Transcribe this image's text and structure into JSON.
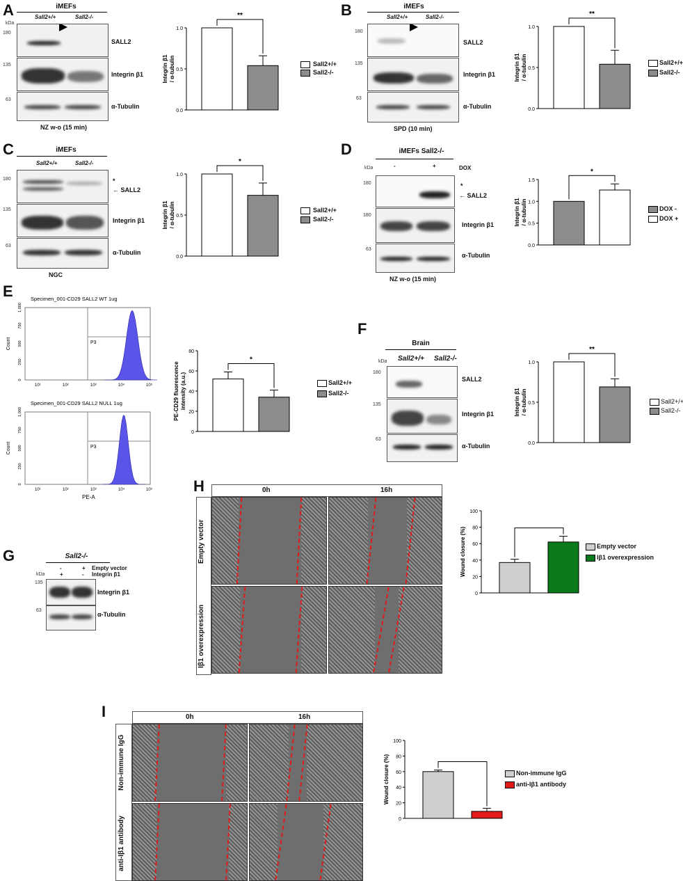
{
  "panels": {
    "A": {
      "letter": "A",
      "header": "iMEFs",
      "lanes": [
        "Sall2+/+",
        "Sall2-/-"
      ],
      "kda": [
        "kDa",
        "180",
        "135",
        "63"
      ],
      "proteins": [
        "SALL2",
        "Integrin β1",
        "α-Tubulin"
      ],
      "condition": "NZ w-o (15 min)",
      "stars": "**",
      "ylabel": "Integrin β1 / α-tubulin",
      "yticks": [
        "1.0",
        "0.5",
        "0.0"
      ],
      "legend": [
        "Sall2+/+",
        "Sall2-/-"
      ]
    },
    "B": {
      "letter": "B",
      "header": "iMEFs",
      "lanes": [
        "Sall2+/+",
        "Sall2-/-"
      ],
      "kda": [
        "kDa",
        "180",
        "135",
        "63"
      ],
      "proteins": [
        "SALL2",
        "Integrin β1",
        "α-Tubulin"
      ],
      "condition": "SPD (10 min)",
      "stars": "**",
      "ylabel": "Integrin β1 / α-tubulin",
      "yticks": [
        "1.0",
        "0.5",
        "0.0"
      ],
      "legend": [
        "Sall2+/+",
        "Sall2-/-"
      ]
    },
    "C": {
      "letter": "C",
      "header": "iMEFs",
      "lanes": [
        "Sall2+/+",
        "Sall2-/-"
      ],
      "kda": [
        "kDa",
        "180",
        "135",
        "63"
      ],
      "proteins": [
        "SALL2",
        "Integrin β1",
        "α-Tubulin"
      ],
      "asterisk": "*",
      "condition": "NGC",
      "stars": "*",
      "ylabel": "Integrin β1 / α-tubulin",
      "yticks": [
        "1.0",
        "0.5",
        "0.0"
      ],
      "legend": [
        "Sall2+/+",
        "Sall2-/-"
      ]
    },
    "D": {
      "letter": "D",
      "header": "iMEFs Sall2-/-",
      "lanes": [
        "-",
        "+"
      ],
      "dox": "DOX",
      "kda": [
        "kDa",
        "180",
        "180",
        "63"
      ],
      "proteins": [
        "SALL2",
        "Integrin β1",
        "α-Tubulin"
      ],
      "asterisk": "*",
      "condition": "NZ w-o (15 min)",
      "stars": "*",
      "ylabel": "Integrin β1 / α-tubulin",
      "yticks": [
        "1.5",
        "1.0",
        "0.5",
        "0.0"
      ],
      "legend": [
        "DOX -",
        "DOX +"
      ]
    },
    "E": {
      "letter": "E",
      "hist1": "Specimen_001-CD29 SALL2 WT 1ug",
      "hist2": "Specimen_001-CD29 SALL2 NULL 1ug",
      "gate": "P3",
      "count": "Count",
      "xaxis": "PE-A",
      "stars": "*",
      "ylabel": "PE-CD29 fluorescence intensity (a.u.)",
      "yticks": [
        "80",
        "60",
        "40",
        "20",
        "0"
      ],
      "legend": [
        "Sall2+/+",
        "Sall2-/-"
      ]
    },
    "F": {
      "letter": "F",
      "header": "Brain",
      "lanes": [
        "Sall2+/+",
        "Sall2-/-"
      ],
      "kda": [
        "kDa",
        "180",
        "135",
        "63"
      ],
      "proteins": [
        "SALL2",
        "Integrin β1",
        "α-Tubulin"
      ],
      "stars": "**",
      "ylabel": "Integrin β1 / α-tubulin",
      "yticks": [
        "1.0",
        "0.5",
        "0.0"
      ],
      "legend": [
        "Sall2+/+",
        "Sall2-/-"
      ]
    },
    "G": {
      "letter": "G",
      "header": "Sall2-/-",
      "row1": [
        "-",
        "+",
        "Empty vector"
      ],
      "row2": [
        "+",
        "-",
        "Integrin β1"
      ],
      "kda": [
        "kDa",
        "135",
        "63"
      ],
      "proteins": [
        "Integrin β1",
        "α-Tubulin"
      ]
    },
    "H": {
      "letter": "H",
      "times": [
        "0h",
        "16h"
      ],
      "rows": [
        "Empty vector",
        "Iβ1 overexpression"
      ],
      "ylabel": "Wound closure (%)",
      "yticks": [
        "100",
        "80",
        "60",
        "40",
        "20",
        "0"
      ],
      "legend": [
        "Empty vector",
        "Iβ1 overexpression"
      ]
    },
    "I": {
      "letter": "I",
      "times": [
        "0h",
        "16h"
      ],
      "rows": [
        "Non-immune IgG",
        "anti-Iβ1 antibody"
      ],
      "ylabel": "Wound closure (%)",
      "yticks": [
        "100",
        "80",
        "60",
        "40",
        "20",
        "0"
      ],
      "legend": [
        "Non-immune IgG",
        "anti-Iβ1 antibody"
      ]
    }
  },
  "colors": {
    "white_bar": "#ffffff",
    "grey_bar": "#8c8c8c",
    "green": "#0b7a1a",
    "red": "#e31a1a",
    "light_grey": "#cfcfcf",
    "histogram": "#5a55e8"
  },
  "chart_data": [
    {
      "panel": "A",
      "type": "bar",
      "categories": [
        "Sall2+/+",
        "Sall2-/-"
      ],
      "values": [
        1.0,
        0.54
      ],
      "errors": [
        0,
        0.12
      ],
      "ylim": [
        0,
        1.0
      ],
      "ylabel": "Integrin β1 / α-tubulin"
    },
    {
      "panel": "B",
      "type": "bar",
      "categories": [
        "Sall2+/+",
        "Sall2-/-"
      ],
      "values": [
        1.0,
        0.54
      ],
      "errors": [
        0,
        0.17
      ],
      "ylim": [
        0,
        1.0
      ],
      "ylabel": "Integrin β1 / α-tubulin"
    },
    {
      "panel": "C",
      "type": "bar",
      "categories": [
        "Sall2+/+",
        "Sall2-/-"
      ],
      "values": [
        1.0,
        0.74
      ],
      "errors": [
        0,
        0.15
      ],
      "ylim": [
        0,
        1.0
      ],
      "ylabel": "Integrin β1 / α-tubulin"
    },
    {
      "panel": "D",
      "type": "bar",
      "categories": [
        "DOX -",
        "DOX +"
      ],
      "values": [
        1.0,
        1.26
      ],
      "errors": [
        0,
        0.14
      ],
      "ylim": [
        0,
        1.5
      ],
      "ylabel": "Integrin β1 / α-tubulin"
    },
    {
      "panel": "E",
      "type": "bar",
      "categories": [
        "Sall2+/+",
        "Sall2-/-"
      ],
      "values": [
        52,
        34
      ],
      "errors": [
        7,
        7
      ],
      "ylim": [
        0,
        80
      ],
      "ylabel": "PE-CD29 fluorescence intensity (a.u.)"
    },
    {
      "panel": "F",
      "type": "bar",
      "categories": [
        "Sall2+/+",
        "Sall2-/-"
      ],
      "values": [
        1.0,
        0.69
      ],
      "errors": [
        0,
        0.1
      ],
      "ylim": [
        0,
        1.0
      ],
      "ylabel": "Integrin β1 / α-tubulin"
    },
    {
      "panel": "H",
      "type": "bar",
      "categories": [
        "Empty vector",
        "Iβ1 overexpression"
      ],
      "values": [
        37,
        62
      ],
      "errors": [
        4,
        7
      ],
      "ylim": [
        0,
        100
      ],
      "ylabel": "Wound closure (%)"
    },
    {
      "panel": "I",
      "type": "bar",
      "categories": [
        "Non-immune IgG",
        "anti-Iβ1 antibody"
      ],
      "values": [
        60,
        9
      ],
      "errors": [
        2,
        4
      ],
      "ylim": [
        0,
        100
      ],
      "ylabel": "Wound closure (%)"
    }
  ]
}
